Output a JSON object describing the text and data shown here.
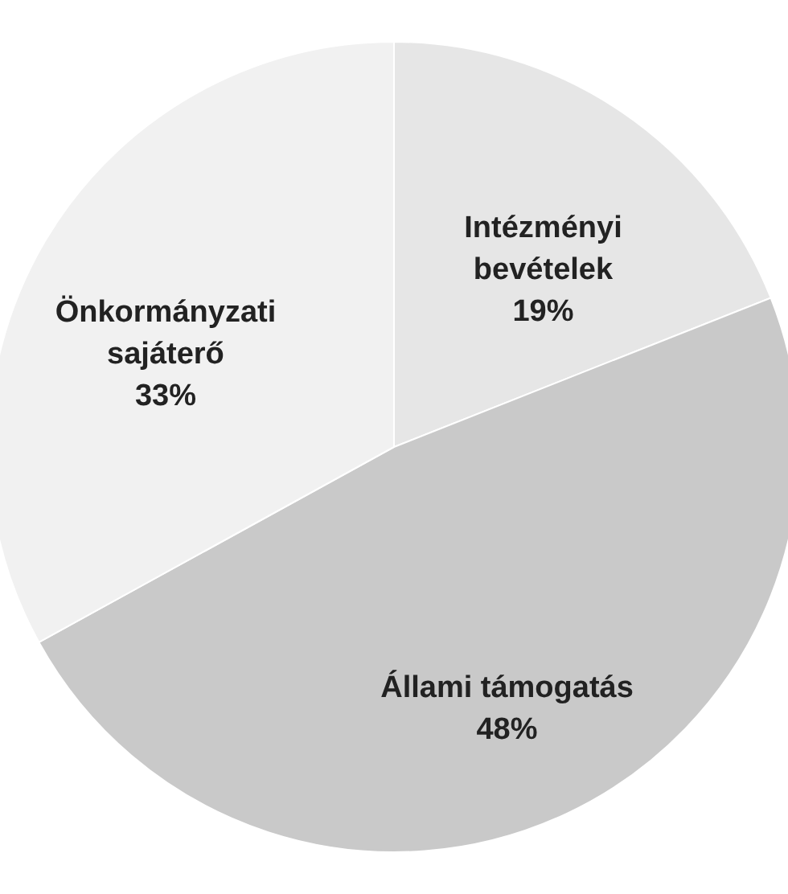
{
  "chart_data": {
    "type": "pie",
    "categories": [
      "Intézményi\nbevételek",
      "Állami támogatás",
      "Önkormányzati\nsajáterő"
    ],
    "values": [
      19,
      48,
      33
    ],
    "value_labels": [
      "19%",
      "48%",
      "33%"
    ],
    "colors": [
      "#e6e6e6",
      "#c9c9c9",
      "#f1f1f1"
    ]
  }
}
